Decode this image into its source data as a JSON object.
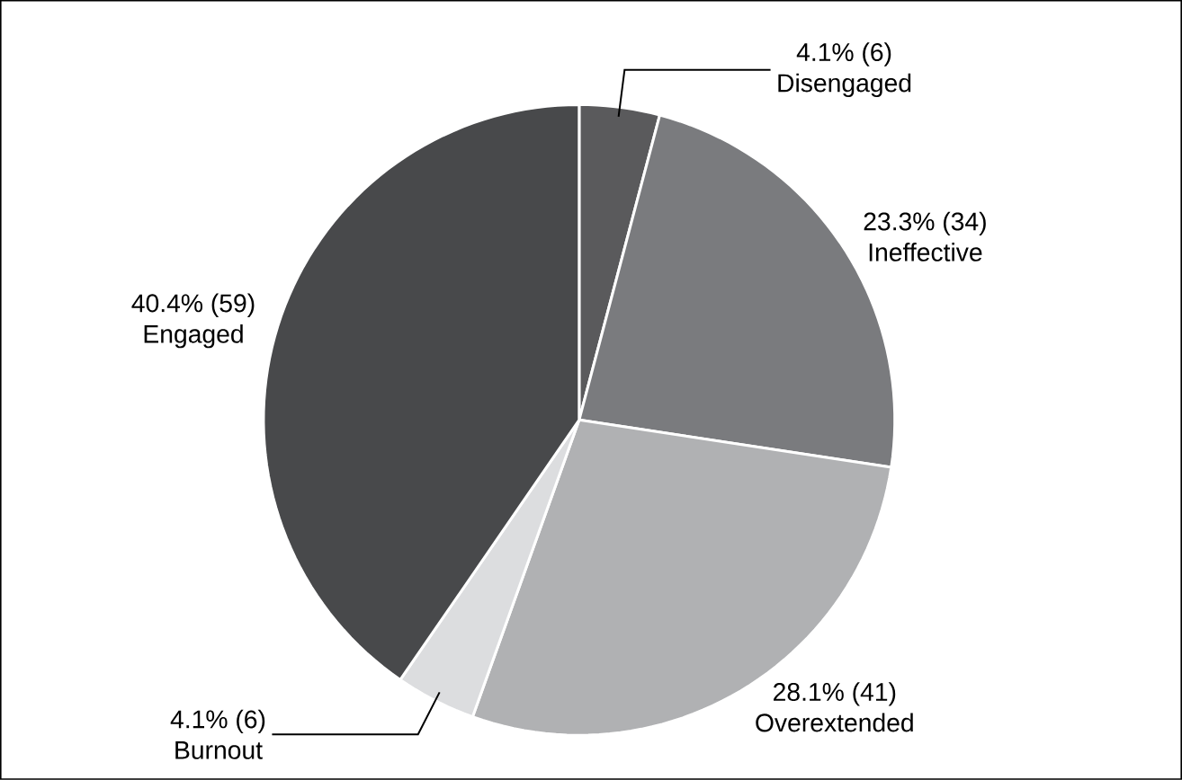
{
  "chart_data": {
    "type": "pie",
    "categories": [
      "Disengaged",
      "Ineffective",
      "Overextended",
      "Burnout",
      "Engaged"
    ],
    "values": [
      6,
      34,
      41,
      6,
      59
    ],
    "value_labels": [
      "4.1% (6)",
      "23.3% (34)",
      "28.1% (41)",
      "4.1% (6)",
      "40.4% (59)"
    ],
    "colors": [
      "#5a5a5c",
      "#7a7b7e",
      "#b0b1b3",
      "#dcdddf",
      "#48494b"
    ]
  }
}
